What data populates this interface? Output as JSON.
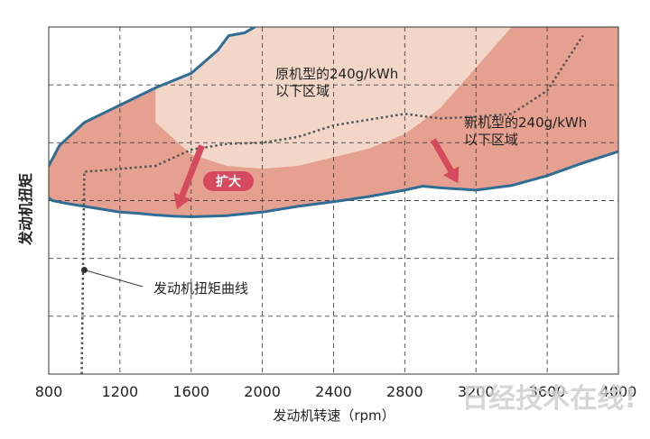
{
  "chart_data": {
    "type": "area",
    "title": "",
    "xlabel": "发动机转速（rpm）",
    "ylabel": "发动机扭矩",
    "xlim": [
      800,
      4000
    ],
    "ylim": [
      0,
      6
    ],
    "x_ticks": [
      800,
      1200,
      1600,
      2000,
      2400,
      2800,
      3200,
      3600,
      4000
    ],
    "grid": true,
    "colors": {
      "old_region": "#f2d7c8",
      "new_region": "#e6a08f",
      "boundary": "#2f6d94",
      "torque_curve": "#555555",
      "arrow": "#d54a5e"
    },
    "series": [
      {
        "name": "新机型的240g/kWh以下区域",
        "kind": "region-boundary",
        "x": [
          800,
          820,
          900,
          1000,
          1100,
          1200,
          1300,
          1400,
          1500,
          1600,
          1800,
          2000,
          2200,
          2400,
          2600,
          2800,
          2900,
          3000,
          3200,
          3400,
          3600,
          3800,
          4000
        ],
        "y": [
          3.05,
          3.0,
          2.95,
          2.9,
          2.85,
          2.8,
          2.78,
          2.75,
          2.73,
          2.72,
          2.74,
          2.8,
          2.9,
          2.98,
          3.07,
          3.18,
          3.25,
          3.22,
          3.18,
          3.26,
          3.43,
          3.65,
          3.85
        ]
      },
      {
        "name": "原机型的240g/kWh以下区域",
        "kind": "region-interior",
        "x": [
          1400,
          1600,
          1800,
          2000,
          2200,
          2400,
          2600,
          2800,
          3000,
          3200,
          3400
        ],
        "y": [
          4.35,
          3.8,
          3.6,
          3.55,
          3.6,
          3.75,
          3.9,
          4.15,
          4.6,
          5.3,
          6.0
        ]
      },
      {
        "name": "发动机扭矩曲线",
        "kind": "dotted-line",
        "x": [
          985,
          1000,
          1100,
          1200,
          1400,
          1600,
          1800,
          2000,
          2200,
          2400,
          2600,
          2800,
          3000,
          3200,
          3400,
          3600,
          3800
        ],
        "y": [
          0,
          3.5,
          3.52,
          3.55,
          3.6,
          3.88,
          3.98,
          4.0,
          4.1,
          4.3,
          4.4,
          4.5,
          4.42,
          4.45,
          4.5,
          4.9,
          5.85
        ]
      }
    ],
    "annotations": [
      {
        "text": "原机型的240g/kWh\n以下区域",
        "x": 2150,
        "y": 5.1
      },
      {
        "text": "新机型的240g/kWh\n以下区域",
        "x": 3080,
        "y": 4.2
      },
      {
        "text": "扩大",
        "x": 1620,
        "y": 3.2
      },
      {
        "text": "发动机扭矩曲线",
        "x": 1450,
        "y": 1.5
      }
    ],
    "arrows": [
      {
        "from": [
          1660,
          3.95
        ],
        "to": [
          1520,
          2.85
        ]
      },
      {
        "from": [
          2960,
          4.05
        ],
        "to": [
          3100,
          3.3
        ]
      }
    ],
    "watermark": "日经技术在线!"
  }
}
